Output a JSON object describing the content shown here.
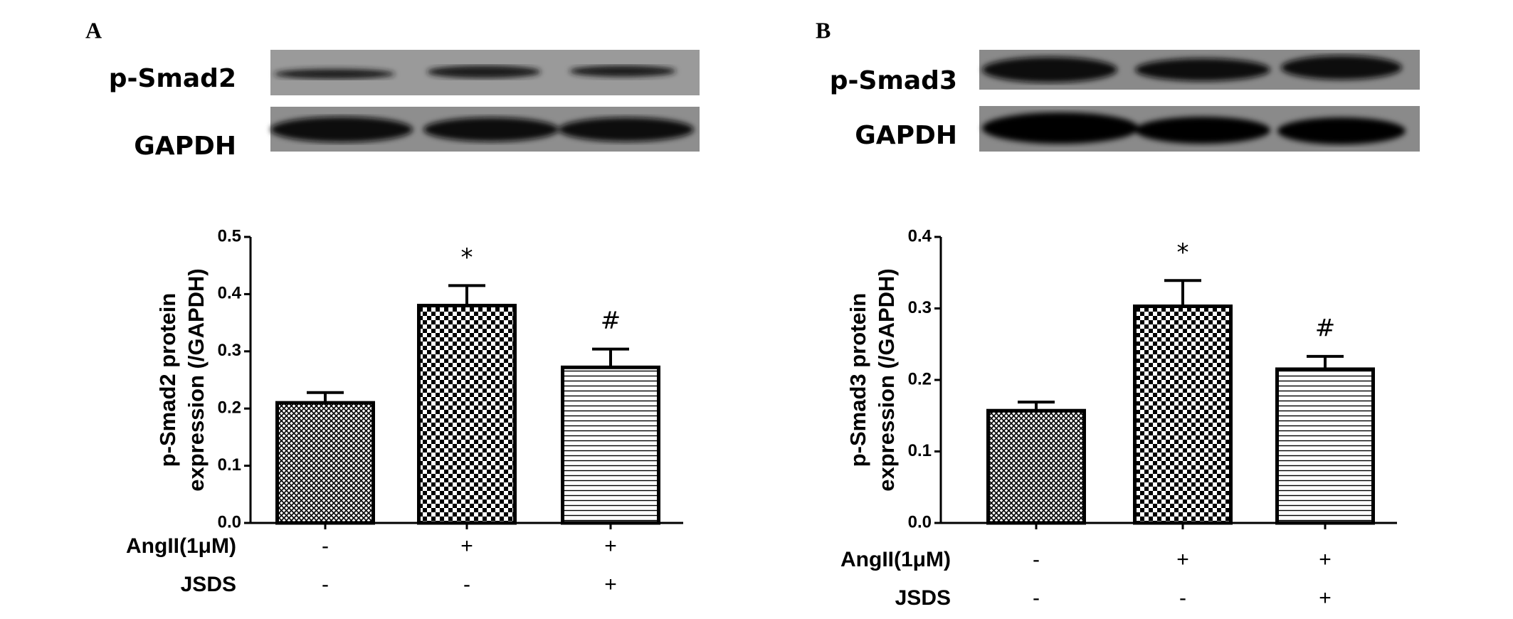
{
  "chart_data": [
    {
      "type": "bar",
      "panel": "A",
      "blot_labels": [
        "p-Smad2",
        "GAPDH"
      ],
      "ylabel": [
        "p-Smad2 protein",
        "expression (/GAPDH)"
      ],
      "row_labels": [
        "AngII(1μM)",
        "JSDS"
      ],
      "rows": [
        [
          "-",
          "+",
          "+"
        ],
        [
          "-",
          "-",
          "+"
        ]
      ],
      "values": [
        0.21,
        0.38,
        0.272
      ],
      "errors": [
        0.018,
        0.035,
        0.032
      ],
      "annotations": [
        null,
        "*",
        "#"
      ],
      "patterns": [
        "crosshatch",
        "checker",
        "hlines"
      ],
      "color": "#000000",
      "ylim": [
        0,
        0.5
      ],
      "yticks": [
        {
          "value": 0,
          "label": "0.0"
        },
        0.1,
        0.2,
        0.3,
        0.4,
        0.5
      ]
    },
    {
      "type": "bar",
      "panel": "B",
      "blot_labels": [
        "p-Smad3",
        "GAPDH"
      ],
      "ylabel": [
        "p-Smad3 protein",
        "expression (/GAPDH)"
      ],
      "row_labels": [
        "AngII(1μM)",
        "JSDS"
      ],
      "rows": [
        [
          "-",
          "+",
          "+"
        ],
        [
          "-",
          "-",
          "+"
        ]
      ],
      "values": [
        0.157,
        0.303,
        0.215
      ],
      "errors": [
        0.012,
        0.036,
        0.018
      ],
      "annotations": [
        null,
        "*",
        "#"
      ],
      "patterns": [
        "crosshatch",
        "checker",
        "hlines"
      ],
      "color": "#000000",
      "ylim": [
        0,
        0.4
      ],
      "yticks": [
        {
          "value": 0,
          "label": "0.0"
        },
        0.1,
        0.2,
        0.3,
        0.4
      ]
    }
  ]
}
